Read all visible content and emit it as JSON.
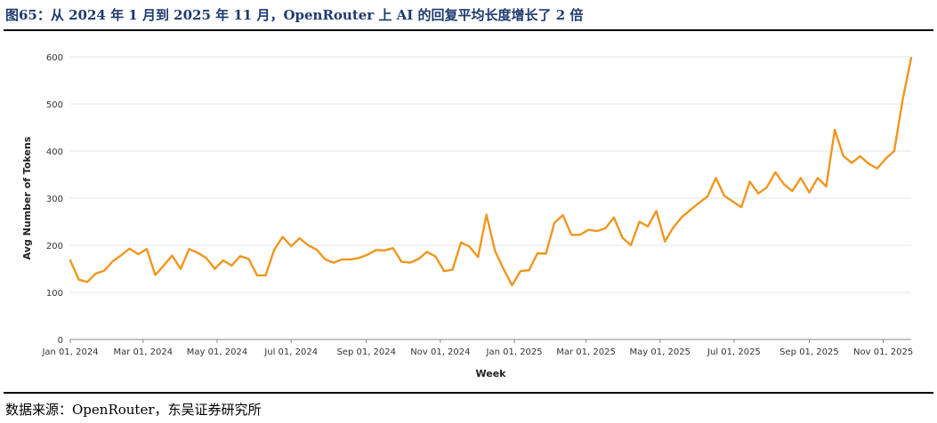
{
  "header": {
    "title": "图65：从 2024 年 1 月到 2025 年 11 月，OpenRouter 上 AI 的回复平均长度增长了 2 倍"
  },
  "footer": {
    "source": "数据来源：OpenRouter，东吴证券研究所"
  },
  "colors": {
    "line": "#f0961f",
    "grid": "#e6e6e6",
    "axis": "#555555",
    "title": "#1f3a6e"
  },
  "chart_data": {
    "type": "line",
    "xlabel": "Week",
    "ylabel": "Avg Number of Tokens",
    "ylim": [
      0,
      600
    ],
    "yticks": [
      "0",
      "100",
      "200",
      "300",
      "400",
      "500",
      "600"
    ],
    "xlim": [
      "2024-01-01",
      "2025-12-01"
    ],
    "xticks": [
      {
        "date": "2024-01-01",
        "label": "Jan 01, 2024"
      },
      {
        "date": "2024-03-01",
        "label": "Mar 01, 2024"
      },
      {
        "date": "2024-05-01",
        "label": "May 01, 2024"
      },
      {
        "date": "2024-07-01",
        "label": "Jul 01, 2024"
      },
      {
        "date": "2024-09-01",
        "label": "Sep 01, 2024"
      },
      {
        "date": "2024-11-01",
        "label": "Nov 01, 2024"
      },
      {
        "date": "2025-01-01",
        "label": "Jan 01, 2025"
      },
      {
        "date": "2025-03-01",
        "label": "Mar 01, 2025"
      },
      {
        "date": "2025-05-01",
        "label": "May 01, 2025"
      },
      {
        "date": "2025-07-01",
        "label": "Jul 01, 2025"
      },
      {
        "date": "2025-09-01",
        "label": "Sep 01, 2025"
      },
      {
        "date": "2025-11-01",
        "label": "Nov 01, 2025"
      }
    ],
    "grid": "horizontal",
    "series": [
      {
        "values": [
          [
            "2024-01-01",
            168
          ],
          [
            "2024-01-08",
            127
          ],
          [
            "2024-01-15",
            122
          ],
          [
            "2024-01-22",
            140
          ],
          [
            "2024-01-29",
            146
          ],
          [
            "2024-02-05",
            166
          ],
          [
            "2024-02-12",
            179
          ],
          [
            "2024-02-19",
            193
          ],
          [
            "2024-02-26",
            181
          ],
          [
            "2024-03-04",
            192
          ],
          [
            "2024-03-11",
            137
          ],
          [
            "2024-03-18",
            157
          ],
          [
            "2024-03-25",
            178
          ],
          [
            "2024-04-01",
            150
          ],
          [
            "2024-04-08",
            192
          ],
          [
            "2024-04-15",
            184
          ],
          [
            "2024-04-22",
            173
          ],
          [
            "2024-04-29",
            150
          ],
          [
            "2024-05-06",
            168
          ],
          [
            "2024-05-13",
            157
          ],
          [
            "2024-05-20",
            177
          ],
          [
            "2024-05-27",
            171
          ],
          [
            "2024-06-03",
            136
          ],
          [
            "2024-06-10",
            136
          ],
          [
            "2024-06-17",
            190
          ],
          [
            "2024-06-24",
            218
          ],
          [
            "2024-07-01",
            198
          ],
          [
            "2024-07-08",
            215
          ],
          [
            "2024-07-15",
            200
          ],
          [
            "2024-07-22",
            191
          ],
          [
            "2024-07-29",
            170
          ],
          [
            "2024-08-05",
            163
          ],
          [
            "2024-08-12",
            170
          ],
          [
            "2024-08-19",
            170
          ],
          [
            "2024-08-26",
            173
          ],
          [
            "2024-09-02",
            180
          ],
          [
            "2024-09-09",
            190
          ],
          [
            "2024-09-16",
            189
          ],
          [
            "2024-09-23",
            194
          ],
          [
            "2024-09-30",
            165
          ],
          [
            "2024-10-07",
            163
          ],
          [
            "2024-10-14",
            171
          ],
          [
            "2024-10-21",
            186
          ],
          [
            "2024-10-28",
            176
          ],
          [
            "2024-11-04",
            145
          ],
          [
            "2024-11-11",
            148
          ],
          [
            "2024-11-18",
            206
          ],
          [
            "2024-11-25",
            197
          ],
          [
            "2024-12-02",
            175
          ],
          [
            "2024-12-09",
            265
          ],
          [
            "2024-12-16",
            188
          ],
          [
            "2024-12-23",
            150
          ],
          [
            "2024-12-30",
            115
          ],
          [
            "2025-01-06",
            145
          ],
          [
            "2025-01-13",
            147
          ],
          [
            "2025-01-20",
            183
          ],
          [
            "2025-01-27",
            182
          ],
          [
            "2025-02-03",
            248
          ],
          [
            "2025-02-10",
            264
          ],
          [
            "2025-02-17",
            222
          ],
          [
            "2025-02-24",
            222
          ],
          [
            "2025-03-03",
            233
          ],
          [
            "2025-03-10",
            230
          ],
          [
            "2025-03-17",
            236
          ],
          [
            "2025-03-24",
            259
          ],
          [
            "2025-03-31",
            216
          ],
          [
            "2025-04-07",
            200
          ],
          [
            "2025-04-14",
            250
          ],
          [
            "2025-04-21",
            240
          ],
          [
            "2025-04-28",
            273
          ],
          [
            "2025-05-05",
            208
          ],
          [
            "2025-05-12",
            238
          ],
          [
            "2025-05-19",
            260
          ],
          [
            "2025-05-26",
            275
          ],
          [
            "2025-06-02",
            290
          ],
          [
            "2025-06-09",
            303
          ],
          [
            "2025-06-16",
            343
          ],
          [
            "2025-06-23",
            305
          ],
          [
            "2025-06-30",
            293
          ],
          [
            "2025-07-07",
            281
          ],
          [
            "2025-07-14",
            335
          ],
          [
            "2025-07-21",
            310
          ],
          [
            "2025-07-28",
            323
          ],
          [
            "2025-08-04",
            355
          ],
          [
            "2025-08-11",
            330
          ],
          [
            "2025-08-18",
            315
          ],
          [
            "2025-08-25",
            343
          ],
          [
            "2025-09-01",
            312
          ],
          [
            "2025-09-08",
            343
          ],
          [
            "2025-09-15",
            325
          ],
          [
            "2025-09-22",
            445
          ],
          [
            "2025-09-29",
            390
          ],
          [
            "2025-10-06",
            375
          ],
          [
            "2025-10-13",
            389
          ],
          [
            "2025-10-20",
            373
          ],
          [
            "2025-10-27",
            363
          ],
          [
            "2025-11-03",
            384
          ],
          [
            "2025-11-10",
            400
          ],
          [
            "2025-11-17",
            510
          ],
          [
            "2025-11-24",
            598
          ]
        ]
      }
    ]
  }
}
